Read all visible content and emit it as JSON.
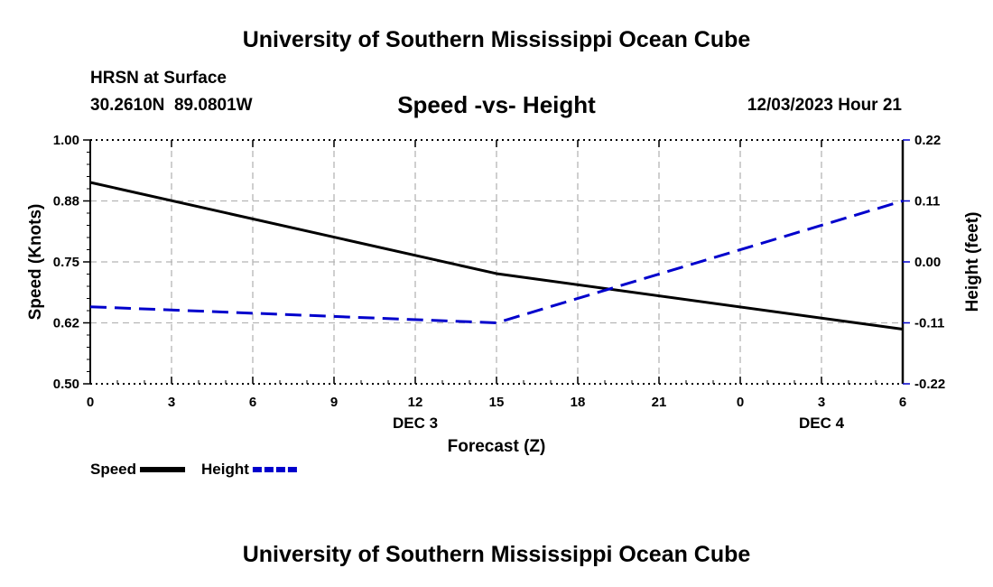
{
  "header": {
    "title": "University of Southern Mississippi Ocean Cube",
    "station": "HRSN at Surface",
    "coords": "30.2610N  89.0801W",
    "subtitle": "Speed -vs- Height",
    "date": "12/03/2023 Hour 21"
  },
  "footer": {
    "title": "University of Southern Mississippi Ocean Cube"
  },
  "chart_data": {
    "type": "line",
    "title": "Speed -vs- Height",
    "xlabel": "Forecast (Z)",
    "x": [
      0,
      3,
      6,
      9,
      12,
      15,
      18,
      21,
      24,
      27,
      30
    ],
    "x_tick_labels": [
      "0",
      "3",
      "6",
      "9",
      "12",
      "15",
      "18",
      "21",
      "0",
      "3",
      "6"
    ],
    "x_day_labels": [
      {
        "x": 12,
        "label": "DEC 3"
      },
      {
        "x": 27,
        "label": "DEC 4"
      }
    ],
    "xlim": [
      0,
      30
    ],
    "grid": true,
    "left_axis": {
      "label": "Speed (Knots)",
      "ylim": [
        0.5,
        1.0
      ],
      "ticks": [
        0.5,
        0.625,
        0.75,
        0.875,
        1.0
      ],
      "tick_labels": [
        "0.50",
        "0.62",
        "0.75",
        "0.88",
        "1.00"
      ]
    },
    "right_axis": {
      "label": "Height (feet)",
      "ylim": [
        -0.22,
        0.22
      ],
      "ticks": [
        -0.22,
        -0.11,
        0.0,
        0.11,
        0.22
      ],
      "tick_labels": [
        "-0.22",
        "-0.11",
        "0.00",
        "0.11",
        "0.22"
      ]
    },
    "series": [
      {
        "name": "Speed",
        "axis": "left",
        "color": "#000000",
        "style": "solid",
        "points": [
          [
            0,
            0.913
          ],
          [
            15,
            0.726
          ],
          [
            30,
            0.612
          ]
        ]
      },
      {
        "name": "Height",
        "axis": "right",
        "color": "#0000cc",
        "style": "dashed",
        "points": [
          [
            0,
            -0.081
          ],
          [
            15,
            -0.11
          ],
          [
            30,
            0.11
          ]
        ]
      }
    ],
    "legend": {
      "placement": "bottom-left",
      "items": [
        {
          "label": "Speed",
          "color": "#000000",
          "style": "solid"
        },
        {
          "label": "Height",
          "color": "#0000cc",
          "style": "dashed"
        }
      ]
    }
  }
}
